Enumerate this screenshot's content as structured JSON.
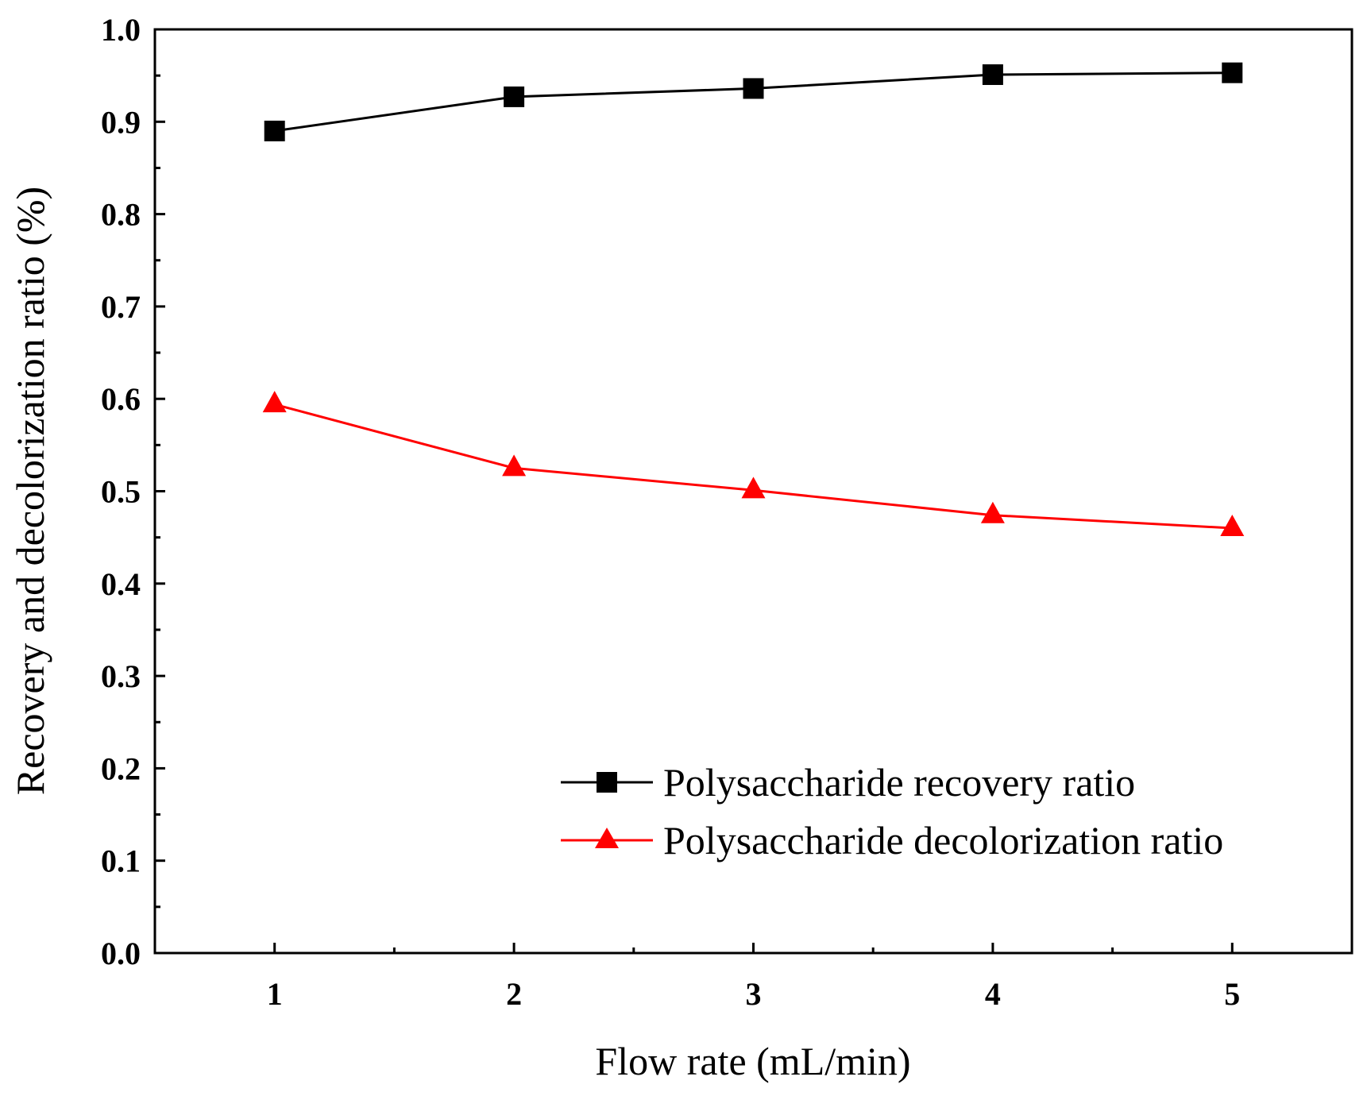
{
  "chart_data": {
    "type": "line",
    "title": "",
    "xlabel": "Flow rate (mL/min)",
    "ylabel": "Recovery and decolorization ratio (%)",
    "x": [
      1,
      2,
      3,
      4,
      5
    ],
    "xlim": [
      0.5,
      5.5
    ],
    "ylim": [
      0.0,
      1.0
    ],
    "x_ticks": [
      1,
      2,
      3,
      4,
      5
    ],
    "x_tick_labels": [
      "1",
      "2",
      "3",
      "4",
      "5"
    ],
    "y_ticks": [
      0.0,
      0.1,
      0.2,
      0.3,
      0.4,
      0.5,
      0.6,
      0.7,
      0.8,
      0.9,
      1.0
    ],
    "y_tick_labels": [
      "0.0",
      "0.1",
      "0.2",
      "0.3",
      "0.4",
      "0.5",
      "0.6",
      "0.7",
      "0.8",
      "0.9",
      "1.0"
    ],
    "grid": false,
    "legend_position": "bottom-right",
    "series": [
      {
        "name": "Polysaccharide recovery ratio",
        "marker": "square",
        "color": "#000000",
        "values": [
          0.89,
          0.927,
          0.936,
          0.951,
          0.953
        ]
      },
      {
        "name": "Polysaccharide decolorization ratio",
        "marker": "triangle",
        "color": "#ff0000",
        "values": [
          0.594,
          0.525,
          0.501,
          0.474,
          0.46
        ]
      }
    ]
  }
}
